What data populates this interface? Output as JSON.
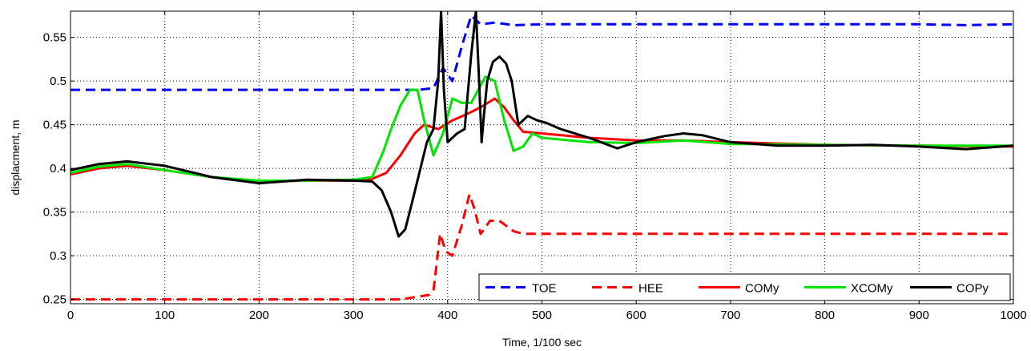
{
  "chart_data": {
    "type": "line",
    "title": "",
    "xlabel": "Time, 1/100 sec",
    "ylabel": "displacment, m",
    "xlim": [
      0,
      1000
    ],
    "ylim": [
      0.245,
      0.58
    ],
    "xticks": [
      0,
      100,
      200,
      300,
      400,
      500,
      600,
      700,
      800,
      900,
      1000
    ],
    "xtick_labels": [
      "0",
      "100",
      "200",
      "300",
      "400",
      "500",
      "600",
      "700",
      "800",
      "900",
      "1000"
    ],
    "yticks": [
      0.25,
      0.3,
      0.35,
      0.4,
      0.45,
      0.5,
      0.55
    ],
    "ytick_labels": [
      "0.25",
      "0.3",
      "0.35",
      "0.4",
      "0.45",
      "0.5",
      "0.55"
    ],
    "grid": true,
    "legend_position": "bottom-right",
    "series": [
      {
        "name": "TOE",
        "color": "#0000ff",
        "dash": "dashed",
        "x": [
          0,
          100,
          200,
          300,
          370,
          385,
          395,
          405,
          415,
          425,
          435,
          450,
          470,
          500,
          600,
          700,
          800,
          900,
          950,
          1000
        ],
        "y": [
          0.49,
          0.49,
          0.49,
          0.49,
          0.49,
          0.492,
          0.515,
          0.5,
          0.54,
          0.575,
          0.565,
          0.567,
          0.564,
          0.565,
          0.565,
          0.565,
          0.565,
          0.565,
          0.564,
          0.565
        ]
      },
      {
        "name": "HEE",
        "color": "#ff0000",
        "dash": "dashed",
        "x": [
          0,
          100,
          200,
          300,
          350,
          380,
          385,
          392,
          398,
          405,
          415,
          423,
          428,
          435,
          445,
          455,
          470,
          480,
          500,
          600,
          700,
          800,
          900,
          1000
        ],
        "y": [
          0.25,
          0.25,
          0.25,
          0.25,
          0.25,
          0.255,
          0.26,
          0.325,
          0.305,
          0.3,
          0.335,
          0.37,
          0.355,
          0.325,
          0.34,
          0.34,
          0.328,
          0.325,
          0.325,
          0.325,
          0.325,
          0.325,
          0.325,
          0.325
        ]
      },
      {
        "name": "COMy",
        "color": "#ff0000",
        "dash": "solid",
        "x": [
          0,
          30,
          60,
          100,
          150,
          200,
          250,
          300,
          320,
          335,
          350,
          365,
          375,
          390,
          405,
          420,
          435,
          450,
          460,
          470,
          480,
          500,
          550,
          600,
          650,
          700,
          800,
          900,
          1000
        ],
        "y": [
          0.393,
          0.4,
          0.403,
          0.398,
          0.39,
          0.385,
          0.386,
          0.386,
          0.388,
          0.395,
          0.415,
          0.44,
          0.45,
          0.445,
          0.455,
          0.462,
          0.47,
          0.48,
          0.47,
          0.455,
          0.442,
          0.44,
          0.435,
          0.432,
          0.432,
          0.43,
          0.427,
          0.426,
          0.425
        ]
      },
      {
        "name": "XCOMy",
        "color": "#00e400",
        "dash": "solid",
        "x": [
          0,
          30,
          60,
          100,
          150,
          200,
          250,
          300,
          320,
          332,
          340,
          350,
          360,
          368,
          375,
          385,
          395,
          405,
          415,
          425,
          440,
          450,
          460,
          470,
          480,
          490,
          500,
          550,
          600,
          650,
          700,
          800,
          900,
          1000
        ],
        "y": [
          0.395,
          0.402,
          0.405,
          0.398,
          0.39,
          0.386,
          0.386,
          0.387,
          0.39,
          0.42,
          0.445,
          0.472,
          0.49,
          0.49,
          0.455,
          0.415,
          0.44,
          0.48,
          0.475,
          0.475,
          0.505,
          0.5,
          0.455,
          0.42,
          0.425,
          0.44,
          0.435,
          0.43,
          0.429,
          0.432,
          0.428,
          0.427,
          0.426,
          0.426
        ]
      },
      {
        "name": "COPy",
        "color": "#000000",
        "dash": "solid",
        "x": [
          0,
          30,
          60,
          100,
          150,
          200,
          250,
          300,
          320,
          330,
          340,
          348,
          355,
          362,
          370,
          378,
          385,
          390,
          393,
          396,
          400,
          410,
          418,
          425,
          430,
          433,
          436,
          438,
          442,
          448,
          455,
          462,
          468,
          475,
          485,
          495,
          505,
          520,
          550,
          580,
          600,
          630,
          650,
          670,
          700,
          750,
          800,
          850,
          900,
          950,
          1000
        ],
        "y": [
          0.398,
          0.405,
          0.408,
          0.403,
          0.39,
          0.383,
          0.387,
          0.386,
          0.385,
          0.375,
          0.35,
          0.322,
          0.33,
          0.36,
          0.395,
          0.43,
          0.445,
          0.5,
          0.58,
          0.49,
          0.43,
          0.44,
          0.445,
          0.53,
          0.58,
          0.51,
          0.43,
          0.455,
          0.5,
          0.522,
          0.528,
          0.52,
          0.5,
          0.45,
          0.46,
          0.455,
          0.452,
          0.445,
          0.435,
          0.423,
          0.43,
          0.437,
          0.44,
          0.438,
          0.43,
          0.426,
          0.426,
          0.427,
          0.425,
          0.422,
          0.426
        ]
      }
    ]
  }
}
